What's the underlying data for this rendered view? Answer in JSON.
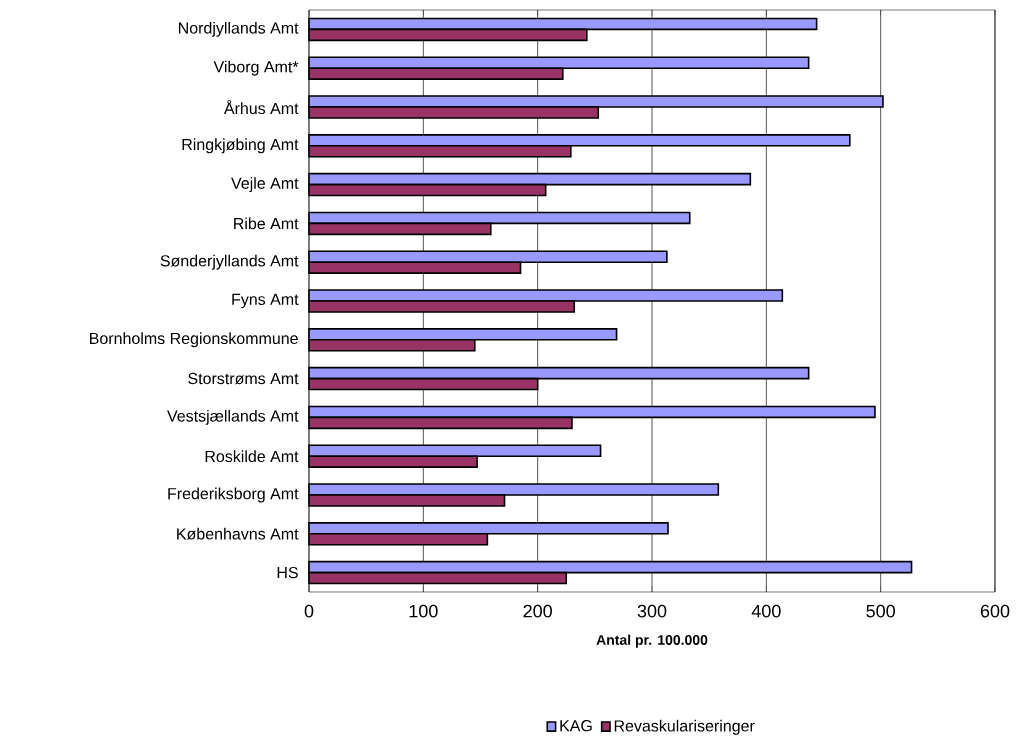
{
  "chart_data": {
    "type": "bar",
    "orientation": "horizontal",
    "xlabel": "Antal pr. 100.000",
    "categories": [
      "Nordjyllands Amt",
      "Viborg Amt*",
      "Århus Amt",
      "Ringkjøbing Amt",
      "Vejle Amt",
      "Ribe Amt",
      "Sønderjyllands Amt",
      "Fyns Amt",
      "Bornholms Regionskommune",
      "Storstrøms Amt",
      "Vestsjællands Amt",
      "Roskilde Amt",
      "Frederiksborg Amt",
      "Københavns Amt",
      "HS"
    ],
    "series": [
      {
        "name": "KAG",
        "color": "#9999ff",
        "values": [
          444,
          437,
          502,
          473,
          386,
          333,
          313,
          414,
          269,
          437,
          495,
          255,
          358,
          314,
          527
        ]
      },
      {
        "name": "Revaskulariseringer",
        "color": "#993366",
        "values": [
          243,
          222,
          253,
          229,
          207,
          159,
          185,
          232,
          145,
          200,
          230,
          147,
          171,
          156,
          225
        ]
      }
    ],
    "xlim": [
      0,
      600
    ],
    "xticks": [
      0,
      100,
      200,
      300,
      400,
      500,
      600
    ],
    "grid": "x",
    "legend": "bottom"
  }
}
